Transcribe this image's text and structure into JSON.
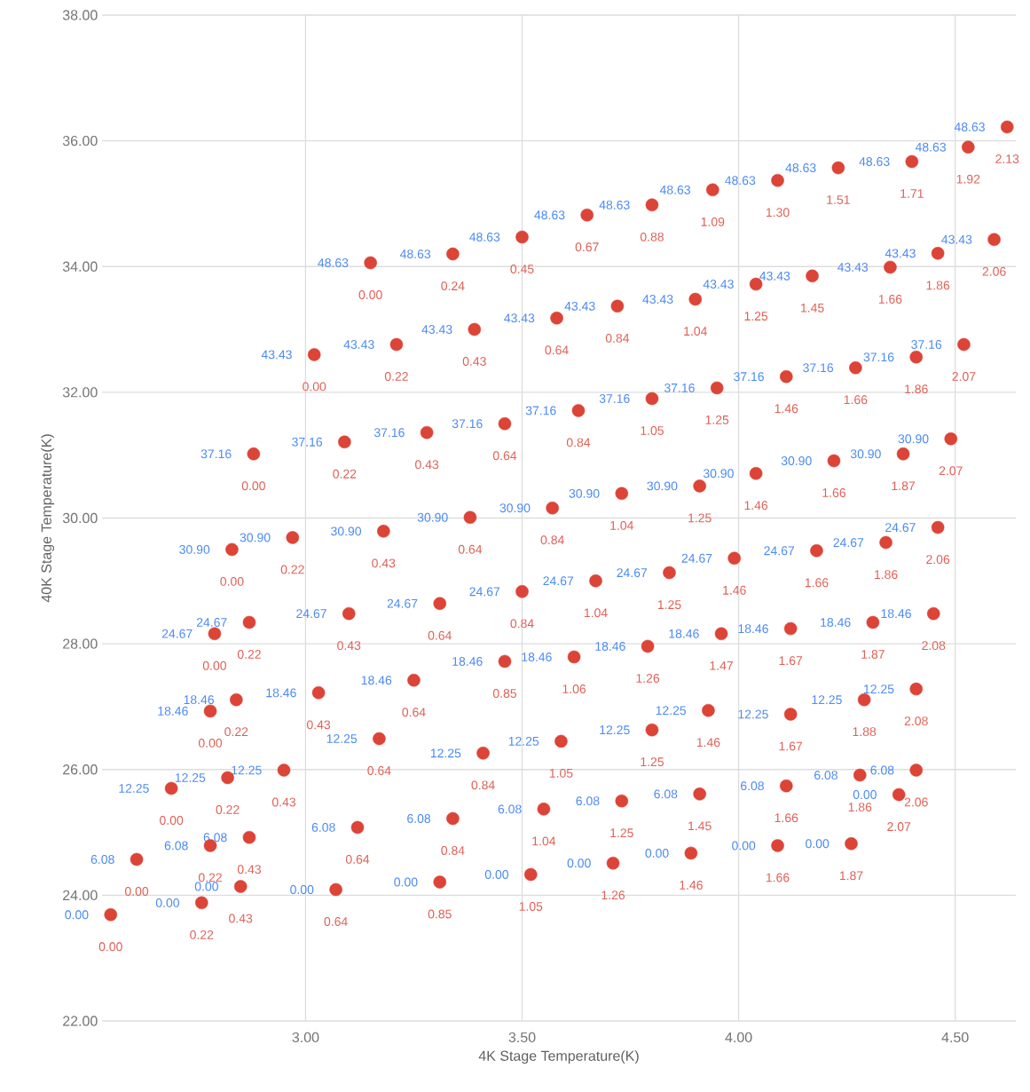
{
  "chart_data": {
    "type": "scatter",
    "xlabel": "4K Stage Temperature(K)",
    "ylabel": "40K Stage Temperature(K)",
    "xlim": [
      2.53,
      4.64
    ],
    "ylim": [
      22,
      38
    ],
    "xticks": [
      {
        "value": 3,
        "label": "3.00"
      },
      {
        "value": 3.5,
        "label": "3.50"
      },
      {
        "value": 4,
        "label": "4.00"
      },
      {
        "value": 4.5,
        "label": "4.50"
      }
    ],
    "yticks": [
      {
        "value": 22,
        "label": "22.00"
      },
      {
        "value": 24,
        "label": "24.00"
      },
      {
        "value": 26,
        "label": "26.00"
      },
      {
        "value": 28,
        "label": "28.00"
      },
      {
        "value": 30,
        "label": "30.00"
      },
      {
        "value": 32,
        "label": "32.00"
      },
      {
        "value": 34,
        "label": "34.00"
      },
      {
        "value": 36,
        "label": "36.00"
      },
      {
        "value": 38,
        "label": "38.00"
      }
    ],
    "grid": true,
    "series": [
      {
        "name": "0.00",
        "color": "#db4437",
        "x": [
          2.55,
          2.76,
          2.85,
          3.07,
          3.31,
          3.52,
          3.71,
          3.89,
          4.09,
          4.26,
          4.37
        ],
        "values": [
          23.69,
          23.88,
          24.14,
          24.09,
          24.21,
          24.33,
          24.51,
          24.67,
          24.79,
          24.82,
          25.6
        ]
      },
      {
        "name": "6.08",
        "color": "#db4437",
        "x": [
          2.61,
          2.78,
          2.87,
          3.12,
          3.34,
          3.55,
          3.73,
          3.91,
          4.11,
          4.28,
          4.41
        ],
        "values": [
          24.57,
          24.79,
          24.92,
          25.08,
          25.22,
          25.37,
          25.5,
          25.61,
          25.74,
          25.91,
          25.99
        ]
      },
      {
        "name": "12.25",
        "color": "#db4437",
        "x": [
          2.69,
          2.82,
          2.95,
          3.17,
          3.41,
          3.59,
          3.8,
          3.93,
          4.12,
          4.29,
          4.41
        ],
        "values": [
          25.7,
          25.87,
          25.99,
          26.49,
          26.26,
          26.45,
          26.63,
          26.94,
          26.88,
          27.11,
          27.28
        ]
      },
      {
        "name": "18.46",
        "color": "#db4437",
        "x": [
          2.78,
          2.84,
          3.03,
          3.25,
          3.46,
          3.62,
          3.79,
          3.96,
          4.12,
          4.31,
          4.45
        ],
        "values": [
          26.93,
          27.11,
          27.22,
          27.42,
          27.72,
          27.79,
          27.96,
          28.16,
          28.24,
          28.34,
          28.48
        ]
      },
      {
        "name": "24.67",
        "color": "#db4437",
        "x": [
          2.79,
          2.87,
          3.1,
          3.31,
          3.5,
          3.67,
          3.84,
          3.99,
          4.18,
          4.34,
          4.46
        ],
        "values": [
          28.16,
          28.34,
          28.48,
          28.64,
          28.83,
          29.0,
          29.13,
          29.36,
          29.48,
          29.61,
          29.85
        ]
      },
      {
        "name": "30.90",
        "color": "#db4437",
        "x": [
          2.83,
          2.97,
          3.18,
          3.38,
          3.57,
          3.73,
          3.91,
          4.04,
          4.22,
          4.38,
          4.49
        ],
        "values": [
          29.5,
          29.69,
          29.79,
          30.01,
          30.16,
          30.39,
          30.51,
          30.71,
          30.91,
          31.02,
          31.26
        ]
      },
      {
        "name": "37.16",
        "color": "#db4437",
        "x": [
          2.88,
          3.09,
          3.28,
          3.46,
          3.63,
          3.8,
          3.95,
          4.11,
          4.27,
          4.41,
          4.52
        ],
        "values": [
          31.02,
          31.21,
          31.36,
          31.5,
          31.71,
          31.9,
          32.07,
          32.25,
          32.39,
          32.56,
          32.76
        ]
      },
      {
        "name": "43.43",
        "color": "#db4437",
        "x": [
          3.02,
          3.21,
          3.39,
          3.58,
          3.72,
          3.9,
          4.04,
          4.17,
          4.35,
          4.46,
          4.59
        ],
        "values": [
          32.6,
          32.76,
          33.0,
          33.18,
          33.37,
          33.48,
          33.72,
          33.85,
          33.99,
          34.21,
          34.43
        ]
      },
      {
        "name": "48.63",
        "color": "#db4437",
        "x": [
          3.15,
          3.34,
          3.5,
          3.65,
          3.8,
          3.94,
          4.09,
          4.23,
          4.4,
          4.53,
          4.62
        ],
        "values": [
          34.06,
          34.2,
          34.47,
          34.82,
          34.98,
          35.22,
          35.37,
          35.57,
          35.67,
          35.9,
          36.22
        ]
      }
    ],
    "annotations": [
      {
        "text": "0.00",
        "x": 2.55,
        "y": 23.69
      },
      {
        "text": "0.22",
        "x": 2.76,
        "y": 23.88
      },
      {
        "text": "0.43",
        "x": 2.85,
        "y": 24.14
      },
      {
        "text": "0.64",
        "x": 3.07,
        "y": 24.09
      },
      {
        "text": "0.85",
        "x": 3.31,
        "y": 24.21
      },
      {
        "text": "1.05",
        "x": 3.52,
        "y": 24.33
      },
      {
        "text": "1.26",
        "x": 3.71,
        "y": 24.51
      },
      {
        "text": "1.46",
        "x": 3.89,
        "y": 24.67
      },
      {
        "text": "1.66",
        "x": 4.09,
        "y": 24.79
      },
      {
        "text": "1.87",
        "x": 4.26,
        "y": 24.82
      },
      {
        "text": "2.07",
        "x": 4.37,
        "y": 25.6
      },
      {
        "text": "0.00",
        "x": 2.61,
        "y": 24.57
      },
      {
        "text": "0.22",
        "x": 2.78,
        "y": 24.79
      },
      {
        "text": "0.43",
        "x": 2.87,
        "y": 24.92
      },
      {
        "text": "0.64",
        "x": 3.12,
        "y": 25.08
      },
      {
        "text": "0.84",
        "x": 3.34,
        "y": 25.22
      },
      {
        "text": "1.04",
        "x": 3.55,
        "y": 25.37
      },
      {
        "text": "1.25",
        "x": 3.73,
        "y": 25.5
      },
      {
        "text": "1.45",
        "x": 3.91,
        "y": 25.61
      },
      {
        "text": "1.66",
        "x": 4.11,
        "y": 25.74
      },
      {
        "text": "1.86",
        "x": 4.28,
        "y": 25.91
      },
      {
        "text": "2.06",
        "x": 4.41,
        "y": 25.99
      },
      {
        "text": "0.00",
        "x": 2.69,
        "y": 25.7
      },
      {
        "text": "0.22",
        "x": 2.82,
        "y": 25.87
      },
      {
        "text": "0.43",
        "x": 2.95,
        "y": 25.99
      },
      {
        "text": "0.64",
        "x": 3.17,
        "y": 26.49
      },
      {
        "text": "0.84",
        "x": 3.41,
        "y": 26.26
      },
      {
        "text": "1.05",
        "x": 3.59,
        "y": 26.45
      },
      {
        "text": "1.25",
        "x": 3.8,
        "y": 26.63
      },
      {
        "text": "1.46",
        "x": 3.93,
        "y": 26.94
      },
      {
        "text": "1.67",
        "x": 4.12,
        "y": 26.88
      },
      {
        "text": "1.88",
        "x": 4.29,
        "y": 27.11
      },
      {
        "text": "2.08",
        "x": 4.41,
        "y": 27.28
      },
      {
        "text": "0.00",
        "x": 2.78,
        "y": 26.93
      },
      {
        "text": "0.22",
        "x": 2.84,
        "y": 27.11
      },
      {
        "text": "0.43",
        "x": 3.03,
        "y": 27.22
      },
      {
        "text": "0.64",
        "x": 3.25,
        "y": 27.42
      },
      {
        "text": "0.85",
        "x": 3.46,
        "y": 27.72
      },
      {
        "text": "1.06",
        "x": 3.62,
        "y": 27.79
      },
      {
        "text": "1.26",
        "x": 3.79,
        "y": 27.96
      },
      {
        "text": "1.47",
        "x": 3.96,
        "y": 28.16
      },
      {
        "text": "1.67",
        "x": 4.12,
        "y": 28.24
      },
      {
        "text": "1.87",
        "x": 4.31,
        "y": 28.34
      },
      {
        "text": "2.08",
        "x": 4.45,
        "y": 28.48
      },
      {
        "text": "0.00",
        "x": 2.79,
        "y": 28.16
      },
      {
        "text": "0.22",
        "x": 2.87,
        "y": 28.34
      },
      {
        "text": "0.43",
        "x": 3.1,
        "y": 28.48
      },
      {
        "text": "0.64",
        "x": 3.31,
        "y": 28.64
      },
      {
        "text": "0.84",
        "x": 3.5,
        "y": 28.83
      },
      {
        "text": "1.04",
        "x": 3.67,
        "y": 29.0
      },
      {
        "text": "1.25",
        "x": 3.84,
        "y": 29.13
      },
      {
        "text": "1.46",
        "x": 3.99,
        "y": 29.36
      },
      {
        "text": "1.66",
        "x": 4.18,
        "y": 29.48
      },
      {
        "text": "1.86",
        "x": 4.34,
        "y": 29.61
      },
      {
        "text": "2.06",
        "x": 4.46,
        "y": 29.85
      },
      {
        "text": "0.00",
        "x": 2.83,
        "y": 29.5
      },
      {
        "text": "0.22",
        "x": 2.97,
        "y": 29.69
      },
      {
        "text": "0.43",
        "x": 3.18,
        "y": 29.79
      },
      {
        "text": "0.64",
        "x": 3.38,
        "y": 30.01
      },
      {
        "text": "0.84",
        "x": 3.57,
        "y": 30.16
      },
      {
        "text": "1.04",
        "x": 3.73,
        "y": 30.39
      },
      {
        "text": "1.25",
        "x": 3.91,
        "y": 30.51
      },
      {
        "text": "1.46",
        "x": 4.04,
        "y": 30.71
      },
      {
        "text": "1.66",
        "x": 4.22,
        "y": 30.91
      },
      {
        "text": "1.87",
        "x": 4.38,
        "y": 31.02
      },
      {
        "text": "2.07",
        "x": 4.49,
        "y": 31.26
      },
      {
        "text": "0.00",
        "x": 2.88,
        "y": 31.02
      },
      {
        "text": "0.22",
        "x": 3.09,
        "y": 31.21
      },
      {
        "text": "0.43",
        "x": 3.28,
        "y": 31.36
      },
      {
        "text": "0.64",
        "x": 3.46,
        "y": 31.5
      },
      {
        "text": "0.84",
        "x": 3.63,
        "y": 31.71
      },
      {
        "text": "1.05",
        "x": 3.8,
        "y": 31.9
      },
      {
        "text": "1.25",
        "x": 3.95,
        "y": 32.07
      },
      {
        "text": "1.46",
        "x": 4.11,
        "y": 32.25
      },
      {
        "text": "1.66",
        "x": 4.27,
        "y": 32.39
      },
      {
        "text": "1.86",
        "x": 4.41,
        "y": 32.56
      },
      {
        "text": "2.07",
        "x": 4.52,
        "y": 32.76
      },
      {
        "text": "0.00",
        "x": 3.02,
        "y": 32.6
      },
      {
        "text": "0.22",
        "x": 3.21,
        "y": 32.76
      },
      {
        "text": "0.43",
        "x": 3.39,
        "y": 33.0
      },
      {
        "text": "0.64",
        "x": 3.58,
        "y": 33.18
      },
      {
        "text": "0.84",
        "x": 3.72,
        "y": 33.37
      },
      {
        "text": "1.04",
        "x": 3.9,
        "y": 33.48
      },
      {
        "text": "1.25",
        "x": 4.04,
        "y": 33.72
      },
      {
        "text": "1.45",
        "x": 4.17,
        "y": 33.85
      },
      {
        "text": "1.66",
        "x": 4.35,
        "y": 33.99
      },
      {
        "text": "1.86",
        "x": 4.46,
        "y": 34.21
      },
      {
        "text": "2.06",
        "x": 4.59,
        "y": 34.43
      },
      {
        "text": "0.00",
        "x": 3.15,
        "y": 34.06
      },
      {
        "text": "0.24",
        "x": 3.34,
        "y": 34.2
      },
      {
        "text": "0.45",
        "x": 3.5,
        "y": 34.47
      },
      {
        "text": "0.67",
        "x": 3.65,
        "y": 34.82
      },
      {
        "text": "0.88",
        "x": 3.8,
        "y": 34.98
      },
      {
        "text": "1.09",
        "x": 3.94,
        "y": 35.22
      },
      {
        "text": "1.30",
        "x": 4.09,
        "y": 35.37
      },
      {
        "text": "1.51",
        "x": 4.23,
        "y": 35.57
      },
      {
        "text": "1.71",
        "x": 4.4,
        "y": 35.67
      },
      {
        "text": "1.92",
        "x": 4.53,
        "y": 35.9
      },
      {
        "text": "2.13",
        "x": 4.62,
        "y": 36.22
      }
    ]
  }
}
